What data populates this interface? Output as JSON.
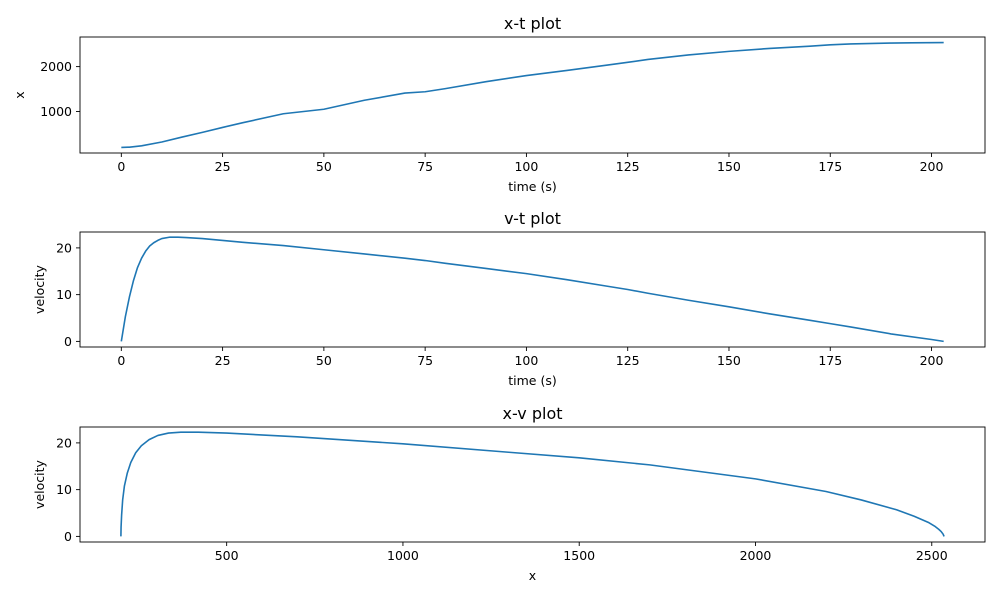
{
  "chart_data": [
    {
      "type": "line",
      "title": "x-t plot",
      "xlabel": "time (s)",
      "ylabel": "x",
      "xlim": [
        -10.2,
        213.2
      ],
      "ylim": [
        75,
        2660
      ],
      "xticks": [
        0,
        25,
        50,
        75,
        100,
        125,
        150,
        175,
        200
      ],
      "yticks": [
        1000,
        2000
      ],
      "grid": false,
      "series": [
        {
          "color": "#1f77b4",
          "x": [
            0,
            2,
            5,
            10,
            15,
            20,
            25,
            30,
            40,
            50,
            60,
            70,
            75,
            80,
            90,
            100,
            110,
            120,
            125,
            130,
            140,
            150,
            160,
            170,
            175,
            180,
            190,
            195,
            203
          ],
          "y": [
            200,
            205,
            235,
            320,
            430,
            535,
            645,
            750,
            950,
            1050,
            1250,
            1410,
            1440,
            1510,
            1665,
            1800,
            1915,
            2035,
            2095,
            2160,
            2260,
            2340,
            2405,
            2455,
            2485,
            2505,
            2525,
            2530,
            2535
          ]
        }
      ]
    },
    {
      "type": "line",
      "title": "v-t plot",
      "xlabel": "time (s)",
      "ylabel": "velocity",
      "xlim": [
        -10.2,
        213.2
      ],
      "ylim": [
        -1.2,
        23.4
      ],
      "xticks": [
        0,
        25,
        50,
        75,
        100,
        125,
        150,
        175,
        200
      ],
      "yticks": [
        0,
        10,
        20
      ],
      "grid": false,
      "series": [
        {
          "color": "#1f77b4",
          "x": [
            0,
            1,
            2,
            3,
            4,
            5,
            6,
            7,
            8,
            9,
            10,
            12,
            14,
            16,
            20,
            25,
            30,
            40,
            50,
            60,
            70,
            75,
            80,
            90,
            100,
            110,
            120,
            125,
            130,
            140,
            150,
            160,
            170,
            175,
            180,
            190,
            200,
            203
          ],
          "y": [
            0,
            5.3,
            9.5,
            13.0,
            15.8,
            17.8,
            19.3,
            20.4,
            21.1,
            21.6,
            22.0,
            22.3,
            22.3,
            22.2,
            22.0,
            21.6,
            21.2,
            20.5,
            19.6,
            18.7,
            17.8,
            17.3,
            16.7,
            15.6,
            14.5,
            13.2,
            11.8,
            11.1,
            10.3,
            8.8,
            7.4,
            5.9,
            4.5,
            3.8,
            3.1,
            1.6,
            0.4,
            0
          ]
        }
      ]
    },
    {
      "type": "line",
      "title": "x-v plot",
      "xlabel": "x",
      "ylabel": "velocity",
      "xlim": [
        84,
        2651
      ],
      "ylim": [
        -1.2,
        23.4
      ],
      "xticks": [
        500,
        1000,
        1500,
        2000,
        2500
      ],
      "yticks": [
        0,
        10,
        20
      ],
      "grid": false,
      "series": [
        {
          "color": "#1f77b4",
          "x": [
            200,
            200.5,
            202,
            205,
            210,
            218,
            228,
            242,
            258,
            280,
            305,
            335,
            370,
            420,
            500,
            700,
            1000,
            1300,
            1500,
            1700,
            2000,
            2200,
            2300,
            2400,
            2450,
            2490,
            2510,
            2520,
            2527,
            2532,
            2535
          ],
          "y": [
            0,
            2.0,
            4.5,
            7.8,
            10.8,
            13.5,
            15.8,
            17.9,
            19.4,
            20.7,
            21.6,
            22.1,
            22.3,
            22.3,
            22.1,
            21.3,
            19.8,
            18.0,
            16.8,
            15.3,
            12.3,
            9.6,
            7.8,
            5.7,
            4.3,
            3.0,
            2.1,
            1.5,
            1.0,
            0.5,
            0
          ]
        }
      ]
    }
  ]
}
